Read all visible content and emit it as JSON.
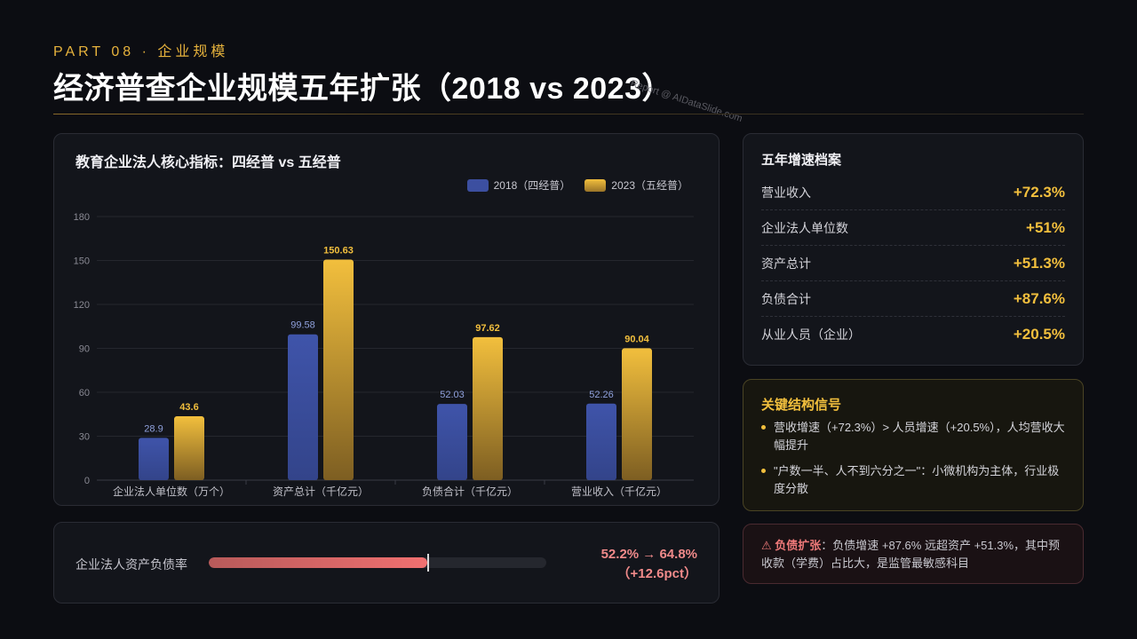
{
  "header": {
    "part_label": "PART 08 · 企业规模",
    "title": "经济普查企业规模五年扩张（2018 vs 2023）",
    "watermark": "Report @ AIDataSlide.com"
  },
  "chart_data": {
    "type": "bar",
    "title": "教育企业法人核心指标：四经普 vs 五经普",
    "categories": [
      "企业法人单位数（万个）",
      "资产总计（千亿元）",
      "负债合计（千亿元）",
      "营业收入（千亿元）"
    ],
    "series": [
      {
        "name": "2018（四经普）",
        "values": [
          28.9,
          99.58,
          52.03,
          52.26
        ],
        "color": "#3c4fa0",
        "label_color": "#8fa0dc"
      },
      {
        "name": "2023（五经普）",
        "values": [
          43.6,
          150.63,
          97.62,
          90.04
        ],
        "color": "#f2bf3d",
        "label_color": "#f2bf3d"
      }
    ],
    "ylim": [
      0,
      180
    ],
    "yticks": [
      0,
      30,
      60,
      90,
      120,
      150,
      180
    ],
    "grid": true,
    "legend_position": "top-right"
  },
  "ratio": {
    "label": "企业法人资产负债率",
    "value_line1": "52.2% → 64.8%",
    "value_line2": "（+12.6pct）",
    "from_pct": 52.2,
    "to_pct": 64.8
  },
  "growth": {
    "title": "五年增速档案",
    "rows": [
      {
        "name": "营业收入",
        "value": "+72.3%"
      },
      {
        "name": "企业法人单位数",
        "value": "+51%"
      },
      {
        "name": "资产总计",
        "value": "+51.3%"
      },
      {
        "name": "负债合计",
        "value": "+87.6%"
      },
      {
        "name": "从业人员（企业）",
        "value": "+20.5%"
      }
    ]
  },
  "signals": {
    "title": "关键结构信号",
    "items": [
      "营收增速（+72.3%）> 人员增速（+20.5%），人均营收大幅提升",
      "\"户数一半、人不到六分之一\"：小微机构为主体，行业极度分散"
    ]
  },
  "debt_note": {
    "strong": "⚠ 负债扩张",
    "text": "：负债增速 +87.6% 远超资产 +51.3%，其中预收款（学费）占比大，是监管最敏感科目"
  }
}
